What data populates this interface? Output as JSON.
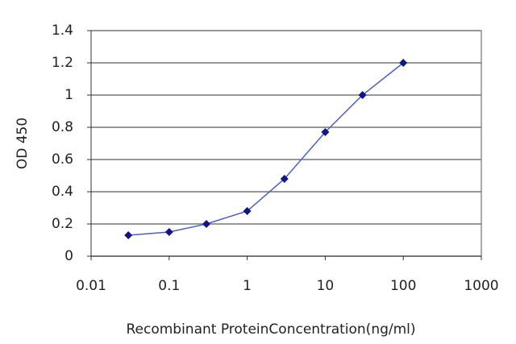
{
  "chart_data": {
    "type": "line",
    "xlabel": "Recombinant ProteinConcentration(ng/ml)",
    "ylabel": "OD 450",
    "x": [
      0.03,
      0.1,
      0.3,
      1,
      3,
      10,
      30,
      100
    ],
    "values": [
      0.13,
      0.15,
      0.2,
      0.28,
      0.48,
      0.77,
      1.0,
      1.2
    ],
    "line_color": "#4a5fc8",
    "marker_color": "#10168a",
    "xscale": "log",
    "xlim": [
      0.01,
      1000
    ],
    "xticks": [
      0.01,
      0.1,
      1,
      10,
      100,
      1000
    ],
    "ylim": [
      0,
      1.4
    ],
    "yticks": [
      0,
      0.2,
      0.4,
      0.6,
      0.8,
      1,
      1.2,
      1.4
    ],
    "grid": true
  }
}
